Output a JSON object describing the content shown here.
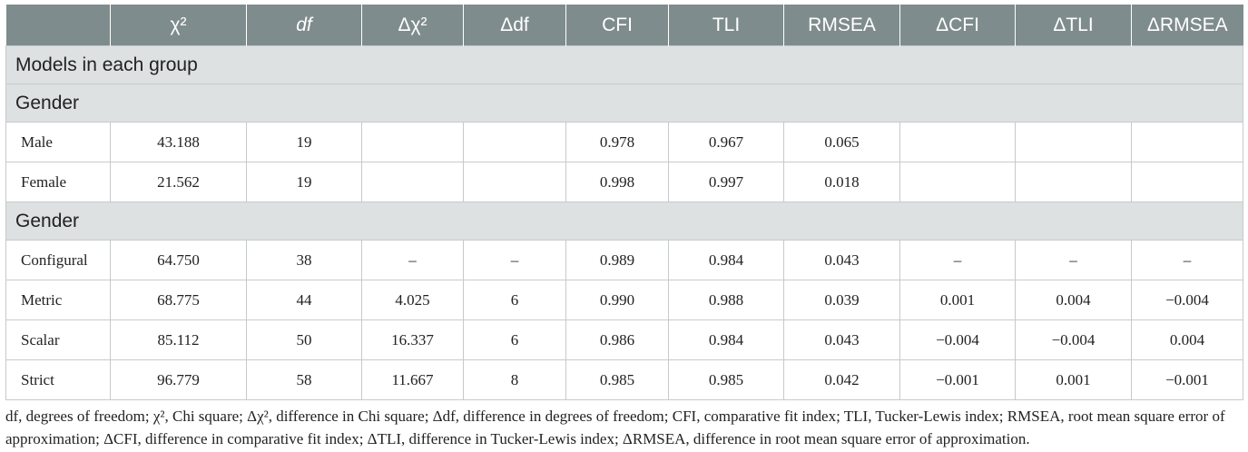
{
  "headers": [
    {
      "text": "",
      "italic": false
    },
    {
      "text": "χ²",
      "italic": false
    },
    {
      "text": "df",
      "italic": true
    },
    {
      "text": "Δχ²",
      "italic": false
    },
    {
      "text": "Δdf",
      "italic": false
    },
    {
      "text": "CFI",
      "italic": false
    },
    {
      "text": "TLI",
      "italic": false
    },
    {
      "text": "RMSEA",
      "italic": false
    },
    {
      "text": "ΔCFI",
      "italic": false
    },
    {
      "text": "ΔTLI",
      "italic": false
    },
    {
      "text": "ΔRMSEA",
      "italic": false
    }
  ],
  "sections": [
    {
      "title": "Models in each group",
      "rows": []
    },
    {
      "title": "Gender",
      "rows": [
        [
          "Male",
          "43.188",
          "19",
          "",
          "",
          "0.978",
          "0.967",
          "0.065",
          "",
          "",
          ""
        ],
        [
          "Female",
          "21.562",
          "19",
          "",
          "",
          "0.998",
          "0.997",
          "0.018",
          "",
          "",
          ""
        ]
      ]
    },
    {
      "title": "Gender",
      "rows": [
        [
          "Configural",
          "64.750",
          "38",
          "–",
          "–",
          "0.989",
          "0.984",
          "0.043",
          "–",
          "–",
          "–"
        ],
        [
          "Metric",
          "68.775",
          "44",
          "4.025",
          "6",
          "0.990",
          "0.988",
          "0.039",
          "0.001",
          "0.004",
          "−0.004"
        ],
        [
          "Scalar",
          "85.112",
          "50",
          "16.337",
          "6",
          "0.986",
          "0.984",
          "0.043",
          "−0.004",
          "−0.004",
          "0.004"
        ],
        [
          "Strict",
          "96.779",
          "58",
          "11.667",
          "8",
          "0.985",
          "0.985",
          "0.042",
          "−0.001",
          "0.001",
          "−0.001"
        ]
      ]
    }
  ],
  "footnote": "df, degrees of freedom; χ², Chi square; Δχ², difference in Chi square; Δdf, difference in degrees of freedom; CFI, comparative fit index; TLI, Tucker-Lewis index; RMSEA, root mean square error of approximation; ΔCFI, difference in comparative fit index; ΔTLI, difference in Tucker-Lewis index; ΔRMSEA, difference in root mean square error of approximation."
}
